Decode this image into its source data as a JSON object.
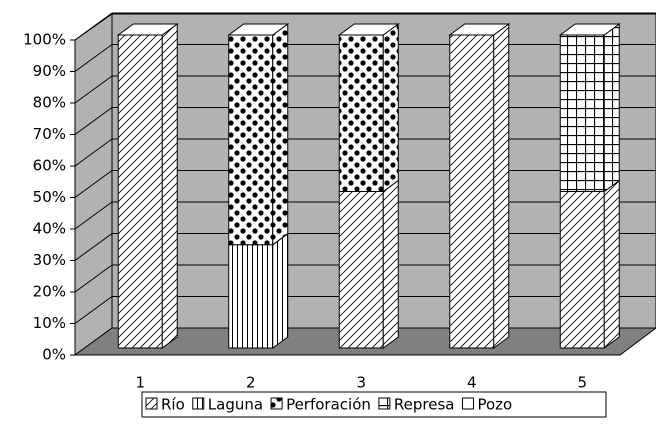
{
  "chart_data": {
    "type": "bar3d_stacked",
    "categories": [
      "1",
      "2",
      "3",
      "4",
      "5"
    ],
    "series": [
      {
        "name": "Río",
        "color": "#000000",
        "pattern": "diagonal",
        "values": [
          100,
          0,
          50,
          100,
          50
        ]
      },
      {
        "name": "Laguna",
        "color": "#000000",
        "pattern": "vertical",
        "values": [
          0,
          33,
          0,
          0,
          0
        ]
      },
      {
        "name": "Perforación",
        "color": "#000000",
        "pattern": "dots",
        "values": [
          0,
          67,
          50,
          0,
          0
        ]
      },
      {
        "name": "Represa",
        "color": "#000000",
        "pattern": "grid",
        "values": [
          0,
          0,
          0,
          0,
          50
        ]
      },
      {
        "name": "Pozo",
        "color": "#000000",
        "pattern": "none",
        "values": [
          0,
          0,
          0,
          0,
          0
        ]
      }
    ],
    "ylim": [
      0,
      100
    ],
    "yticks": [
      {
        "value": 0,
        "label": "0%"
      },
      {
        "value": 10,
        "label": "10%"
      },
      {
        "value": 20,
        "label": "20%"
      },
      {
        "value": 30,
        "label": "30%"
      },
      {
        "value": 40,
        "label": "40%"
      },
      {
        "value": 50,
        "label": "50%"
      },
      {
        "value": 60,
        "label": "60%"
      },
      {
        "value": 70,
        "label": "70%"
      },
      {
        "value": 80,
        "label": "80%"
      },
      {
        "value": 90,
        "label": "90%"
      },
      {
        "value": 100,
        "label": "100%"
      }
    ],
    "grid": true,
    "legend": "bottom"
  }
}
